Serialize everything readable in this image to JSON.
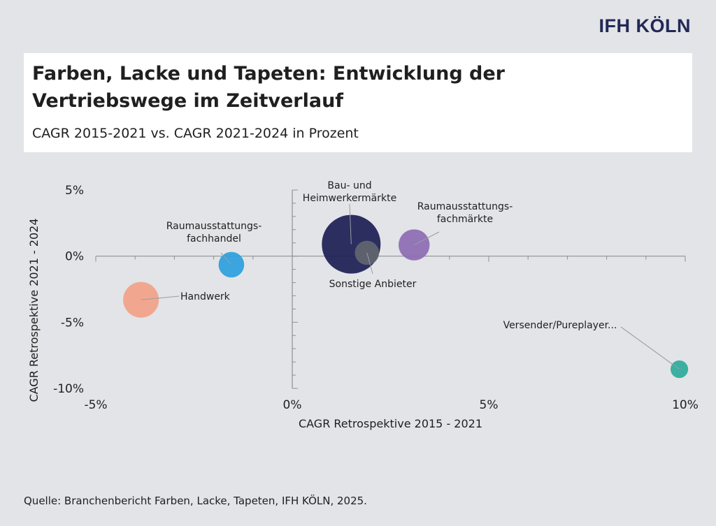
{
  "logo": "IFH KÖLN",
  "title": "Farben, Lacke und Tapeten: Entwicklung der Vertriebswege im Zeitverlauf",
  "subtitle": "CAGR 2015-2021 vs. CAGR 2021-2024 in Prozent",
  "source": "Quelle: Branchenbericht Farben, Lacke, Tapeten, IFH KÖLN, 2025.",
  "chart_data": {
    "type": "scatter",
    "xlabel": "CAGR Retrospektive 2015 - 2021",
    "ylabel": "CAGR Retrospektive 2021 - 2024",
    "xlim": [
      -5,
      10
    ],
    "ylim": [
      -10,
      5
    ],
    "x_ticks": [
      {
        "value": -5,
        "label": "-5%"
      },
      {
        "value": 0,
        "label": "0%"
      },
      {
        "value": 5,
        "label": "5%"
      },
      {
        "value": 10,
        "label": "10%"
      }
    ],
    "y_ticks": [
      {
        "value": 5,
        "label": "5%"
      },
      {
        "value": 0,
        "label": "0%"
      },
      {
        "value": -5,
        "label": "-5%"
      },
      {
        "value": -10,
        "label": "-10%"
      }
    ],
    "grid": false,
    "points": [
      {
        "label": "Bau- und\nHeimwerkermärkte",
        "x": 1.5,
        "y": 0.9,
        "size": 1.0,
        "color": "#1c1e55"
      },
      {
        "label": "Sonstige Anbieter",
        "x": 1.9,
        "y": 0.25,
        "size": 0.17,
        "color": "#62666f"
      },
      {
        "label": "Raumausstattungs-\nfachmärkte",
        "x": 3.1,
        "y": 0.85,
        "size": 0.28,
        "color": "#8d6bb3"
      },
      {
        "label": "Raumausstattungs-\nfachhandel",
        "x": -1.55,
        "y": -0.65,
        "size": 0.19,
        "color": "#2b9fde"
      },
      {
        "label": "Handwerk",
        "x": -3.85,
        "y": -3.3,
        "size": 0.37,
        "color": "#f2a288"
      },
      {
        "label": "Versender/Pureplayer...",
        "x": 9.85,
        "y": -8.55,
        "size": 0.09,
        "color": "#2cab9b"
      }
    ]
  }
}
